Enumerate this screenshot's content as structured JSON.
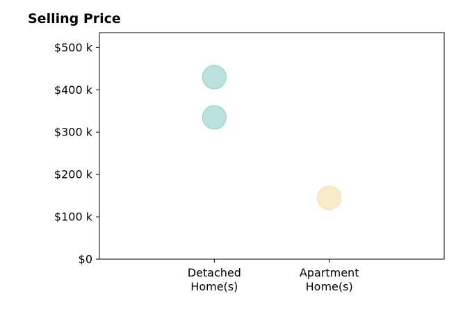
{
  "chart_data": {
    "type": "scatter",
    "title": "Selling Price",
    "xlabel": "",
    "ylabel": "",
    "categories": [
      "Detached\nHome(s)",
      "Apartment\nHome(s)"
    ],
    "xlim": [
      -1,
      2
    ],
    "ylim": [
      0,
      535000
    ],
    "yticks": [
      0,
      100000,
      200000,
      300000,
      400000,
      500000
    ],
    "ytick_labels": [
      "$0",
      "$100 k",
      "$200 k",
      "$300 k",
      "$400 k",
      "$500 k"
    ],
    "grid": false,
    "series": [
      {
        "color": "#8ecfc9",
        "points": [
          {
            "category": "Detached\nHome(s)",
            "y": 430000
          },
          {
            "category": "Detached\nHome(s)",
            "y": 335000
          }
        ]
      },
      {
        "color": "#f5dfa6",
        "points": [
          {
            "category": "Apartment\nHome(s)",
            "y": 145000
          }
        ]
      }
    ]
  }
}
